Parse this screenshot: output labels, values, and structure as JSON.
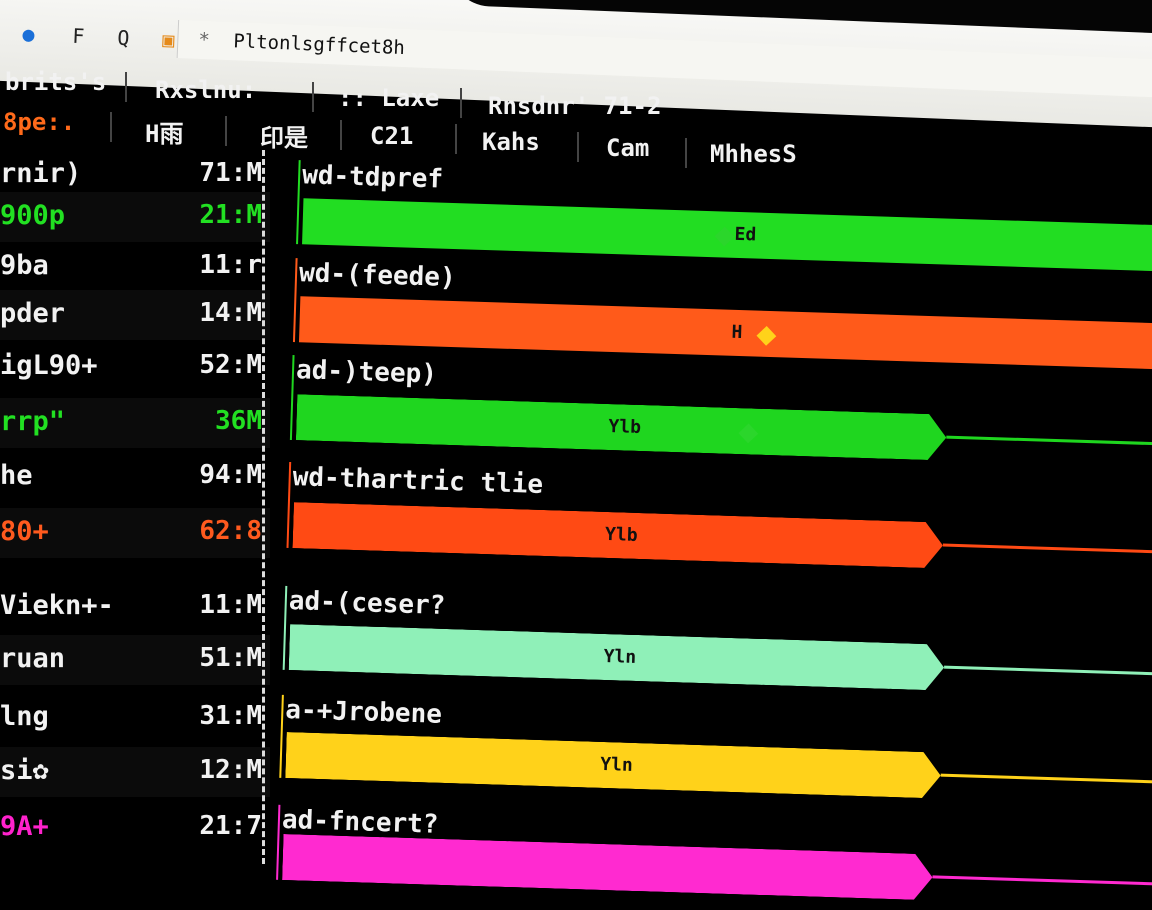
{
  "toolbar": {
    "icons": [
      "search-person-icon",
      "font-icon",
      "search-icon",
      "bookmark-icon",
      "star-icon"
    ],
    "address": "Pltonlsgffcet8h"
  },
  "header": {
    "row1": [
      "brits's",
      "Rxslnu:",
      ":: Laxe",
      "Rnsdnr' 71-2"
    ],
    "row2": [
      "8pe:.",
      "H雨",
      "印是",
      "C21",
      "Kahs",
      "Cam",
      "MhhesS"
    ]
  },
  "rows": [
    {
      "label": "rnir)",
      "value": "71:M",
      "color": "#f2f2f2"
    },
    {
      "label": "900p",
      "value": "21:M",
      "color": "#22e022"
    },
    {
      "label": "9ba",
      "value": "11:r",
      "color": "#f2f2f2"
    },
    {
      "label": "pder",
      "value": "14:M",
      "color": "#f2f2f2"
    },
    {
      "label": "igL90+",
      "value": "52:M",
      "color": "#f2f2f2"
    },
    {
      "label": "rrp\"",
      "value": "36M",
      "color": "#22e022"
    },
    {
      "label": "he",
      "value": "94:M",
      "color": "#f2f2f2"
    },
    {
      "label": "80+",
      "value": "62:8",
      "color": "#ff5a1e"
    },
    {
      "label": "Viekn+-",
      "value": "11:M",
      "color": "#f2f2f2"
    },
    {
      "label": "ruan",
      "value": "51:M",
      "color": "#f2f2f2"
    },
    {
      "label": "lng",
      "value": "31:M",
      "color": "#f2f2f2"
    },
    {
      "label": "si✿",
      "value": "12:M",
      "color": "#f2f2f2"
    },
    {
      "label": "9A+",
      "value": "21:7",
      "color": "#ff22cc"
    }
  ],
  "tracks": [
    {
      "label": "wd-tdpref",
      "bar_text": "Ed",
      "color": "#22dd22"
    },
    {
      "label": "wd-(feede)",
      "bar_text": "H",
      "color": "#ff5a1a"
    },
    {
      "label": "ad-)teep)",
      "bar_text": "Ylb",
      "color": "#1fd61f"
    },
    {
      "label": "wd-thartric tlie",
      "bar_text": "Ylb",
      "color": "#ff4a14"
    },
    {
      "label": "ad-(ceser?",
      "bar_text": "Yln",
      "color": "#8ff0b8"
    },
    {
      "label": "a-+Jrobene",
      "bar_text": "Yln",
      "color": "#ffd21a"
    },
    {
      "label": "ad-fncert?",
      "bar_text": "",
      "color": "#ff2ad0"
    }
  ]
}
